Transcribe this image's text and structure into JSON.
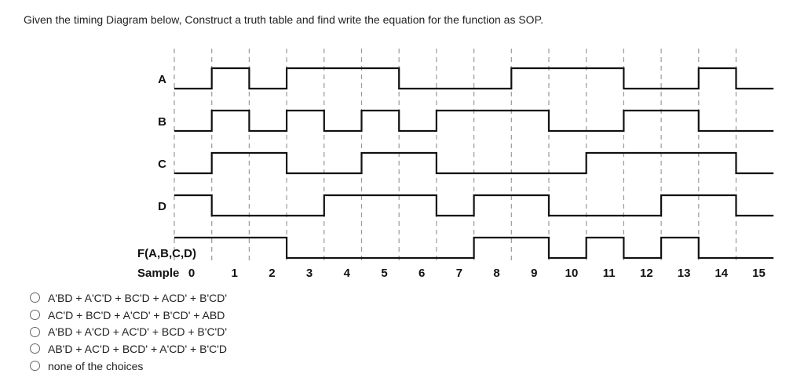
{
  "question": "Given the timing Diagram below, Construct a truth table and find write the equation for the function as SOP.",
  "diagram": {
    "sample_label": "Sample",
    "samples": [
      "0",
      "1",
      "2",
      "3",
      "4",
      "5",
      "6",
      "7",
      "8",
      "9",
      "10",
      "11",
      "12",
      "13",
      "14",
      "15"
    ],
    "signals": [
      {
        "name": "A",
        "values": [
          0,
          1,
          0,
          1,
          1,
          1,
          0,
          0,
          0,
          1,
          1,
          1,
          0,
          0,
          1,
          0
        ]
      },
      {
        "name": "B",
        "values": [
          0,
          1,
          0,
          1,
          0,
          1,
          0,
          1,
          1,
          1,
          0,
          0,
          1,
          1,
          0,
          0
        ]
      },
      {
        "name": "C",
        "values": [
          0,
          1,
          1,
          0,
          0,
          1,
          1,
          0,
          0,
          0,
          0,
          1,
          1,
          1,
          1,
          0
        ]
      },
      {
        "name": "D",
        "values": [
          1,
          0,
          0,
          0,
          1,
          1,
          1,
          0,
          1,
          1,
          0,
          0,
          0,
          1,
          1,
          0
        ]
      },
      {
        "name": "F(A,B,C,D)",
        "values": [
          1,
          1,
          1,
          0,
          0,
          0,
          0,
          0,
          1,
          1,
          0,
          1,
          0,
          1,
          0,
          0
        ]
      }
    ]
  },
  "choices": [
    "A'BD + A'C'D + BC'D + ACD' + B'CD'",
    "AC'D + BC'D + A'CD' + B'CD' + ABD",
    "A'BD + A'CD + AC'D' + BCD + B'C'D'",
    "AB'D + AC'D + BCD' + A'CD' + B'C'D",
    "none of the choices"
  ]
}
